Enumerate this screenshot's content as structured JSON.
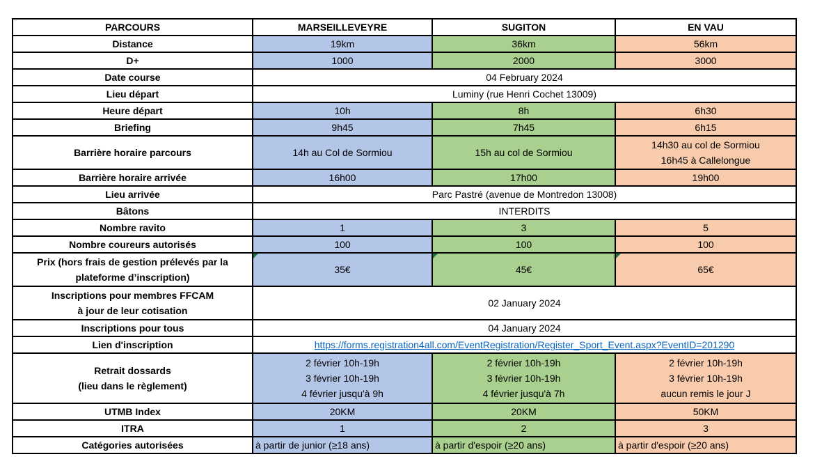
{
  "colors": {
    "marseilleveyre_fill": "#b4c6e7",
    "sugiton_fill": "#a9d08e",
    "en_vau_fill": "#f8cbad",
    "grid_border": "#000000",
    "link_blue": "#0563c1",
    "comment_indicator_green": "#1e7145",
    "text": "#000000",
    "page_background": "#ffffff"
  },
  "table": {
    "header": {
      "label": "PARCOURS",
      "columns": [
        "MARSEILLEVEYRE",
        "SUGITON",
        "EN VAU"
      ]
    },
    "rows": [
      {
        "label": "Distance",
        "values": [
          "19km",
          "36km",
          "56km"
        ]
      },
      {
        "label": "D+",
        "values": [
          "1000",
          "2000",
          "3000"
        ]
      },
      {
        "label": "Date course",
        "merged": "04 February 2024"
      },
      {
        "label": "Lieu départ",
        "merged": "Luminy (rue Henri Cochet 13009)"
      },
      {
        "label": "Heure départ",
        "values": [
          "10h",
          "8h",
          "6h30"
        ]
      },
      {
        "label": "Briefing",
        "values": [
          "9h45",
          "7h45",
          "6h15"
        ]
      },
      {
        "label": "Barrière horaire parcours",
        "h": 2,
        "values": [
          "14h au Col de Sormiou",
          "15h au col de Sormiou",
          "14h30 au col de Sormiou\n16h45 à Callelongue"
        ]
      },
      {
        "label": "Barrière horaire arrivée",
        "values": [
          "16h00",
          "17h00",
          "19h00"
        ]
      },
      {
        "label": "Lieu arrivée",
        "merged": "Parc Pastré (avenue de Montredon 13008)"
      },
      {
        "label": "Bâtons",
        "merged": "INTERDITS"
      },
      {
        "label": "Nombre ravito",
        "values": [
          "1",
          "3",
          "5"
        ]
      },
      {
        "label": "Nombre coureurs autorisés",
        "values": [
          "100",
          "100",
          "100"
        ]
      },
      {
        "label": "Prix (hors frais de gestion prélevés par la\nplateforme d’inscription)",
        "h": 2,
        "comment": true,
        "values": [
          "35€",
          "45€",
          "65€"
        ]
      },
      {
        "label": "Inscriptions pour membres FFCAM\nà jour de leur cotisation",
        "h": 2,
        "merged": "02 January 2024"
      },
      {
        "label": "Inscriptions pour tous",
        "merged": "04 January 2024"
      },
      {
        "label": "Lien d'inscription",
        "link": true,
        "merged": "https://forms.registration4all.com/EventRegistration/Register_Sport_Event.aspx?EventID=201290"
      },
      {
        "label": "Retrait dossards\n(lieu dans le règlement)",
        "h": 3,
        "values": [
          "2 février 10h-19h\n3 février 10h-19h\n4 février jusqu'à 9h",
          "2 février 10h-19h\n3 février 10h-19h\n4 février jusqu'à 7h",
          "2 février 10h-19h\n3 février 10h-19h\naucun remis le jour J"
        ]
      },
      {
        "label": "UTMB Index",
        "values": [
          "20KM",
          "20KM",
          "50KM"
        ]
      },
      {
        "label": "ITRA",
        "values": [
          "1",
          "2",
          "3"
        ]
      },
      {
        "label": "Catégories autorisées",
        "align": "left",
        "values": [
          "à partir de junior (≥18 ans)",
          "à partir d'espoir (≥20 ans)",
          "à partir d'espoir (≥20 ans)"
        ]
      }
    ]
  }
}
